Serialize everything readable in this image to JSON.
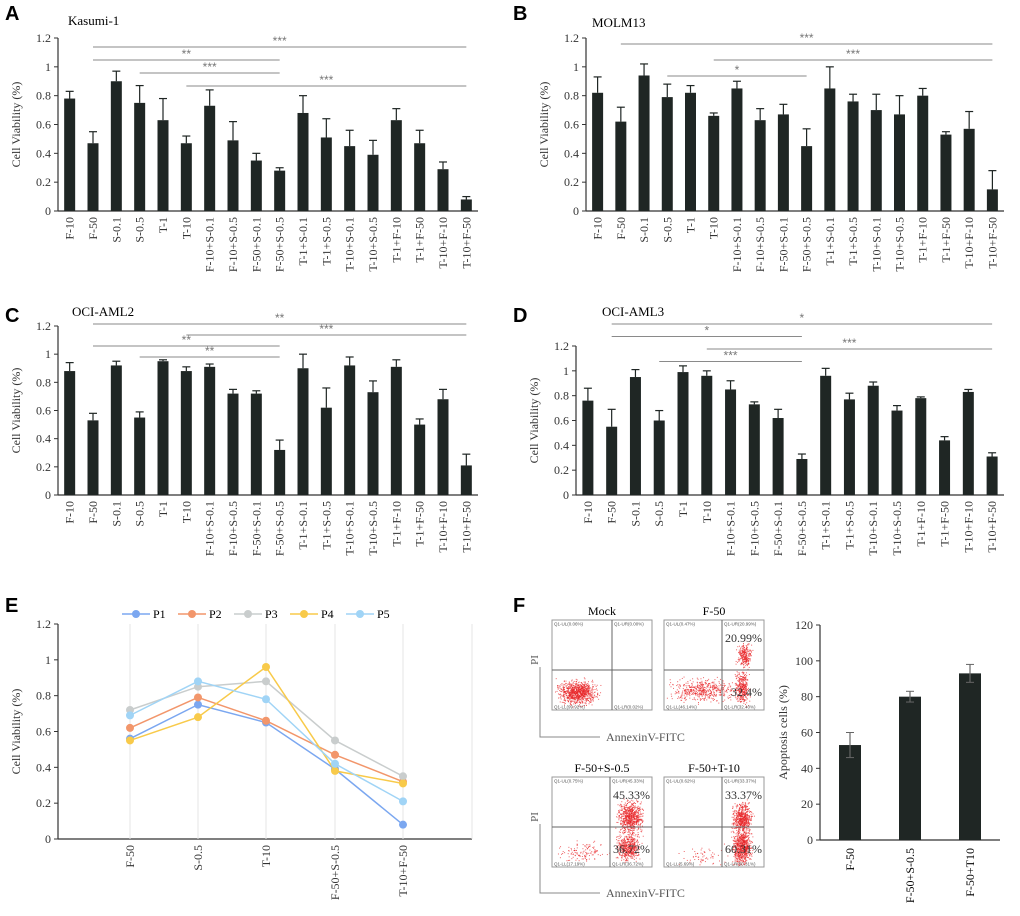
{
  "colors": {
    "bar": "#1f2624",
    "axis": "#333333",
    "bracket": "#8a8a8a",
    "dot": "#e8262a"
  },
  "chart_data": [
    {
      "panel": "A",
      "type": "bar",
      "title": "Kasumi-1",
      "ylabel": "Cell Viability (%)",
      "ylim": [
        0,
        1.2
      ],
      "yticks": [
        "0",
        "0.2",
        "0.4",
        "0.6",
        "0.8",
        "1",
        "1.2"
      ],
      "categories": [
        "F-10",
        "F-50",
        "S-0.1",
        "S-0.5",
        "T-1",
        "T-10",
        "F-10+S-0.1",
        "F-10+S-0.5",
        "F-50+S-0.1",
        "F-50+S-0.5",
        "T-1+S-0.1",
        "T-1+S-0.5",
        "T-10+S-0.1",
        "T-10+S-0.5",
        "T-1+F-10",
        "T-1+F-50",
        "T-10+F-10",
        "T-10+F-50"
      ],
      "values": [
        0.78,
        0.47,
        0.9,
        0.75,
        0.63,
        0.47,
        0.73,
        0.49,
        0.35,
        0.28,
        0.68,
        0.51,
        0.45,
        0.39,
        0.63,
        0.47,
        0.29,
        0.08
      ],
      "errors": [
        0.05,
        0.08,
        0.07,
        0.12,
        0.15,
        0.05,
        0.11,
        0.13,
        0.05,
        0.02,
        0.12,
        0.13,
        0.11,
        0.1,
        0.08,
        0.09,
        0.05,
        0.02
      ],
      "significance": [
        {
          "from": 1,
          "to": 17,
          "label": "***"
        },
        {
          "from": 1,
          "to": 9,
          "label": "**"
        },
        {
          "from": 3,
          "to": 9,
          "label": "***"
        },
        {
          "from": 5,
          "to": 17,
          "label": "***"
        }
      ]
    },
    {
      "panel": "B",
      "type": "bar",
      "title": "MOLM13",
      "ylabel": "Cell Viability (%)",
      "ylim": [
        0,
        1.2
      ],
      "yticks": [
        "0",
        "0.2",
        "0.4",
        "0.6",
        "0.8",
        "1",
        "1.2"
      ],
      "categories": [
        "F-10",
        "F-50",
        "S-0.1",
        "S-0.5",
        "T-1",
        "T-10",
        "F-10+S-0.1",
        "F-10+S-0.5",
        "F-50+S-0.1",
        "F-50+S-0.5",
        "T-1+S-0.1",
        "T-1+S-0.5",
        "T-10+S-0.1",
        "T-10+S-0.5",
        "T-1+F-10",
        "T-1+F-50",
        "T-10+F-10",
        "T-10+F-50"
      ],
      "values": [
        0.82,
        0.62,
        0.94,
        0.79,
        0.82,
        0.66,
        0.85,
        0.63,
        0.67,
        0.45,
        0.85,
        0.76,
        0.7,
        0.67,
        0.8,
        0.53,
        0.57,
        0.15
      ],
      "errors": [
        0.11,
        0.1,
        0.08,
        0.09,
        0.05,
        0.02,
        0.05,
        0.08,
        0.07,
        0.12,
        0.15,
        0.05,
        0.11,
        0.13,
        0.05,
        0.02,
        0.12,
        0.13
      ],
      "significance": [
        {
          "from": 1,
          "to": 17,
          "label": "***"
        },
        {
          "from": 5,
          "to": 17,
          "label": "***"
        },
        {
          "from": 3,
          "to": 9,
          "label": "*"
        }
      ]
    },
    {
      "panel": "C",
      "type": "bar",
      "title": "OCI-AML2",
      "ylabel": "Cell Viability (%)",
      "ylim": [
        0,
        1.2
      ],
      "yticks": [
        "0",
        "0.2",
        "0.4",
        "0.6",
        "0.8",
        "1",
        "1.2"
      ],
      "categories": [
        "F-10",
        "F-50",
        "S-0.1",
        "S-0.5",
        "T-1",
        "T-10",
        "F-10+S-0.1",
        "F-10+S-0.5",
        "F-50+S-0.1",
        "F-50+S-0.5",
        "T-1+S-0.1",
        "T-1+S-0.5",
        "T-10+S-0.1",
        "T-10+S-0.5",
        "T-1+F-10",
        "T-1+F-50",
        "T-10+F-10",
        "T-10+F-50"
      ],
      "values": [
        0.88,
        0.53,
        0.92,
        0.55,
        0.95,
        0.88,
        0.91,
        0.72,
        0.72,
        0.32,
        0.9,
        0.62,
        0.92,
        0.73,
        0.91,
        0.5,
        0.68,
        0.21
      ],
      "errors": [
        0.06,
        0.05,
        0.03,
        0.04,
        0.01,
        0.03,
        0.02,
        0.03,
        0.02,
        0.07,
        0.1,
        0.14,
        0.06,
        0.08,
        0.05,
        0.04,
        0.07,
        0.08
      ],
      "significance": [
        {
          "from": 1,
          "to": 17,
          "label": "**"
        },
        {
          "from": 5,
          "to": 17,
          "label": "***"
        },
        {
          "from": 1,
          "to": 9,
          "label": "**"
        },
        {
          "from": 3,
          "to": 9,
          "label": "**"
        }
      ]
    },
    {
      "panel": "D",
      "type": "bar",
      "title": "OCI-AML3",
      "ylabel": "Cell Viability (%)",
      "ylim": [
        0,
        1.2
      ],
      "yticks": [
        "0",
        "0.2",
        "0.4",
        "0.6",
        "0.8",
        "1",
        "1.2"
      ],
      "categories": [
        "F-10",
        "F-50",
        "S-0.1",
        "S-0.5",
        "T-1",
        "T-10",
        "F-10+S-0.1",
        "F-10+S-0.5",
        "F-50+S-0.1",
        "F-50+S-0.5",
        "T-1+S-0.1",
        "T-1+S-0.5",
        "T-10+S-0.1",
        "T-10+S-0.5",
        "T-1+F-10",
        "T-1+F-50",
        "T-10+F-10",
        "T-10+F-50"
      ],
      "values": [
        0.76,
        0.55,
        0.95,
        0.6,
        0.99,
        0.96,
        0.85,
        0.73,
        0.62,
        0.29,
        0.96,
        0.77,
        0.88,
        0.68,
        0.78,
        0.44,
        0.83,
        0.31
      ],
      "errors": [
        0.1,
        0.14,
        0.06,
        0.08,
        0.05,
        0.04,
        0.07,
        0.02,
        0.07,
        0.04,
        0.06,
        0.05,
        0.03,
        0.04,
        0.01,
        0.03,
        0.02,
        0.03
      ],
      "significance": [
        {
          "from": 1,
          "to": 17,
          "label": "*"
        },
        {
          "from": 1,
          "to": 9,
          "label": "*"
        },
        {
          "from": 5,
          "to": 17,
          "label": "***"
        },
        {
          "from": 3,
          "to": 9,
          "label": "***"
        }
      ]
    },
    {
      "panel": "E",
      "type": "line",
      "ylabel": "Cell Viability (%)",
      "ylim": [
        0,
        1.2
      ],
      "yticks": [
        "0",
        "0.2",
        "0.4",
        "0.6",
        "0.8",
        "1",
        "1.2"
      ],
      "categories": [
        "F-50",
        "S-0.5",
        "T-10",
        "F-50+S-0.5",
        "T-10+F-50"
      ],
      "legend_position": "top",
      "series": [
        {
          "name": "P1",
          "color": "#7ba7f0",
          "values": [
            0.56,
            0.75,
            0.65,
            0.39,
            0.08
          ]
        },
        {
          "name": "P2",
          "color": "#f2966b",
          "values": [
            0.62,
            0.79,
            0.66,
            0.47,
            0.32
          ]
        },
        {
          "name": "P3",
          "color": "#c9cdcd",
          "values": [
            0.72,
            0.85,
            0.88,
            0.55,
            0.35
          ]
        },
        {
          "name": "P4",
          "color": "#f8ca4a",
          "values": [
            0.55,
            0.68,
            0.96,
            0.38,
            0.31
          ]
        },
        {
          "name": "P5",
          "color": "#a0d4f6",
          "values": [
            0.69,
            0.88,
            0.78,
            0.42,
            0.21
          ]
        }
      ]
    },
    {
      "panel": "F",
      "type": "bar",
      "ylabel": "Apoptosis cells (%)",
      "ylim": [
        0,
        120
      ],
      "yticks": [
        "0",
        "20",
        "40",
        "60",
        "80",
        "100",
        "120"
      ],
      "categories": [
        "F-50",
        "F-50+S-0.5",
        "F-50+T10"
      ],
      "values": [
        53,
        80,
        93
      ],
      "errors": [
        7,
        3,
        5
      ]
    }
  ],
  "flow": {
    "xlabel": "AnnexinV-FITC",
    "ylabel": "PI",
    "plots": [
      {
        "title": "Mock",
        "ul": "Q1-UL(0.06%)",
        "ur": "Q1-UR(0.00%)",
        "ll": "Q1-LL(99.92%)",
        "lr": "Q1-LR(0.02%)",
        "ur_big": "",
        "lr_big": "",
        "dist": "mock"
      },
      {
        "title": "F-50",
        "ul": "Q1-UL(0.47%)",
        "ur": "Q1-UR(20.99%)",
        "ll": "Q1-LL(46.14%)",
        "lr": "Q1-LR(32.40%)",
        "ur_big": "20.99%",
        "lr_big": "32.4%",
        "dist": "f50"
      },
      {
        "title": "F-50+S-0.5",
        "ul": "Q1-UL(0.75%)",
        "ur": "Q1-UR(45.33%)",
        "ll": "Q1-LL(17.19%)",
        "lr": "Q1-LR(36.72%)",
        "ur_big": "45.33%",
        "lr_big": "36.72%",
        "dist": "combo1"
      },
      {
        "title": "F-50+T-10",
        "ul": "Q1-UL(0.62%)",
        "ur": "Q1-UR(33.37%)",
        "ll": "Q1-LL(5.69%)",
        "lr": "Q1-LR(60.31%)",
        "ur_big": "33.37%",
        "lr_big": "60.31%",
        "dist": "combo2"
      }
    ]
  }
}
